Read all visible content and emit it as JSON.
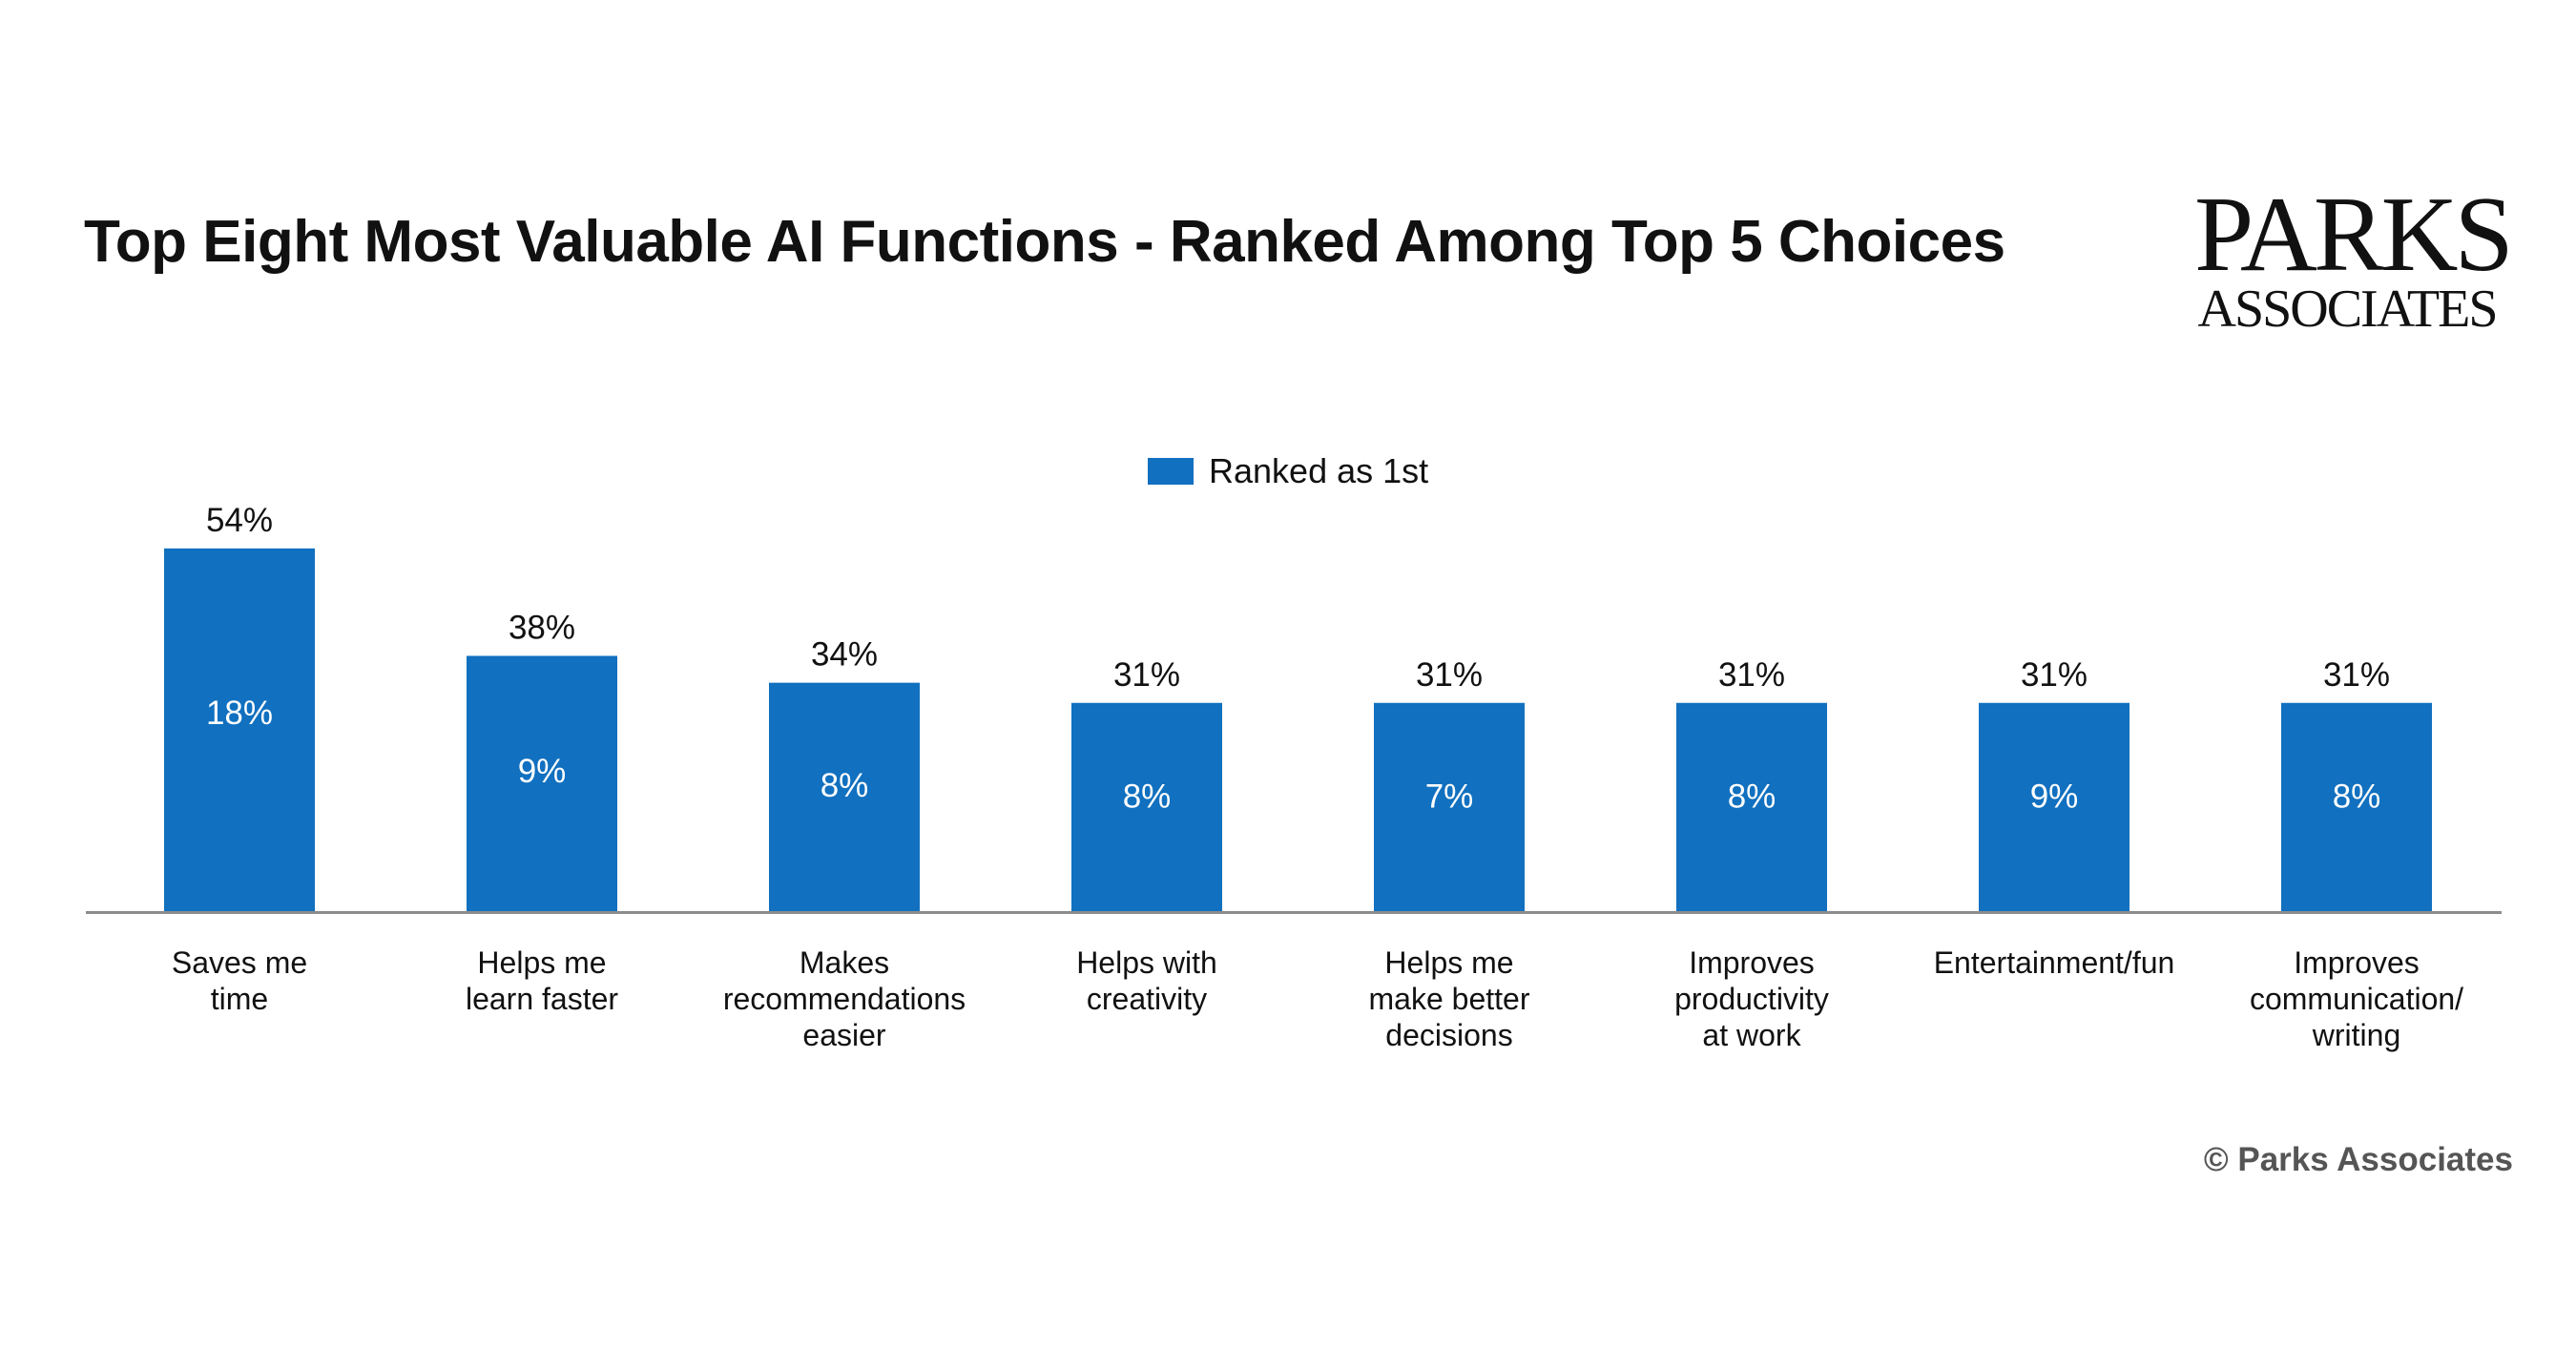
{
  "header": {
    "title": "Top Eight Most Valuable AI Functions - Ranked Among Top 5 Choices",
    "logo_line1": "PARKS",
    "logo_line2": "ASSOCIATES"
  },
  "footer": {
    "copyright": "© Parks Associates"
  },
  "chart_data": {
    "type": "bar",
    "title": "Top Eight Most Valuable AI Functions - Ranked Among Top 5 Choices",
    "xlabel": "",
    "ylabel": "",
    "ylim": [
      0,
      60
    ],
    "legend_position": "top-center",
    "grid": false,
    "colors": {
      "bar": "#1170bf",
      "axis": "#8c8c8c",
      "inner_label": "#ffffff"
    },
    "categories": [
      [
        "Saves me",
        "time"
      ],
      [
        "Helps me",
        "learn faster"
      ],
      [
        "Makes",
        "recommendations",
        "easier"
      ],
      [
        "Helps with",
        "creativity"
      ],
      [
        "Helps me",
        "make better",
        "decisions"
      ],
      [
        "Improves",
        "productivity",
        "at work"
      ],
      [
        "Entertainment/fun"
      ],
      [
        "Improves",
        "communication/",
        "writing"
      ]
    ],
    "series": [
      {
        "name": "Ranked as 1st",
        "values": [
          18,
          9,
          8,
          8,
          7,
          8,
          9,
          8
        ],
        "labels": [
          "18%",
          "9%",
          "8%",
          "8%",
          "7%",
          "8%",
          "9%",
          "8%"
        ]
      }
    ],
    "top_five_values": [
      54,
      38,
      34,
      31,
      31,
      31,
      31,
      31
    ],
    "top_five_labels": [
      "54%",
      "38%",
      "34%",
      "31%",
      "31%",
      "31%",
      "31%",
      "31%"
    ]
  }
}
